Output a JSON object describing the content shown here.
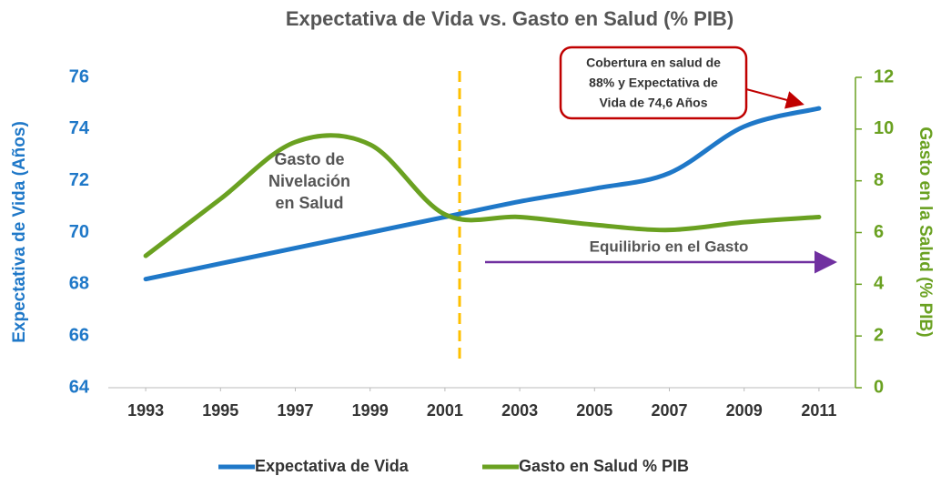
{
  "chart_data": {
    "type": "line",
    "title": "Expectativa de Vida vs. Gasto en Salud (% PIB)",
    "ylabel": "Expectativa de Vida (Años)",
    "y2label": "Gasto en la Salud  (% PIB)",
    "x": [
      1993,
      1995,
      1997,
      1999,
      2001,
      2003,
      2005,
      2007,
      2009,
      2011
    ],
    "xlim": [
      1992,
      2012
    ],
    "xticks": [
      1993,
      1995,
      1997,
      1999,
      2001,
      2003,
      2005,
      2007,
      2009,
      2011
    ],
    "ylim": [
      64,
      76
    ],
    "yticks": [
      64,
      66,
      68,
      70,
      72,
      74,
      76
    ],
    "y2lim": [
      0,
      12
    ],
    "y2ticks": [
      0,
      2,
      4,
      6,
      8,
      10,
      12
    ],
    "series": [
      {
        "name": "Expectativa de Vida",
        "color": "#1f78c8",
        "values": [
          68.2,
          68.8,
          69.4,
          70.0,
          70.6,
          71.2,
          71.7,
          72.3,
          74.1,
          74.8
        ]
      },
      {
        "name": "Gasto en Salud % PIB",
        "color": "#6aa121",
        "axis": "y2",
        "values": [
          5.1,
          7.3,
          9.5,
          9.4,
          6.7,
          6.6,
          6.3,
          6.1,
          6.4,
          6.6
        ]
      }
    ],
    "annotations": [
      {
        "lines": [
          "Gasto de",
          "Nivelación",
          "en Salud"
        ]
      },
      {
        "lines": [
          "Cobertura en salud de",
          "88% y Expectativa de",
          "Vida de 74,6 Años"
        ]
      },
      {
        "lines": [
          "Equilibrio en el Gasto"
        ]
      }
    ]
  }
}
